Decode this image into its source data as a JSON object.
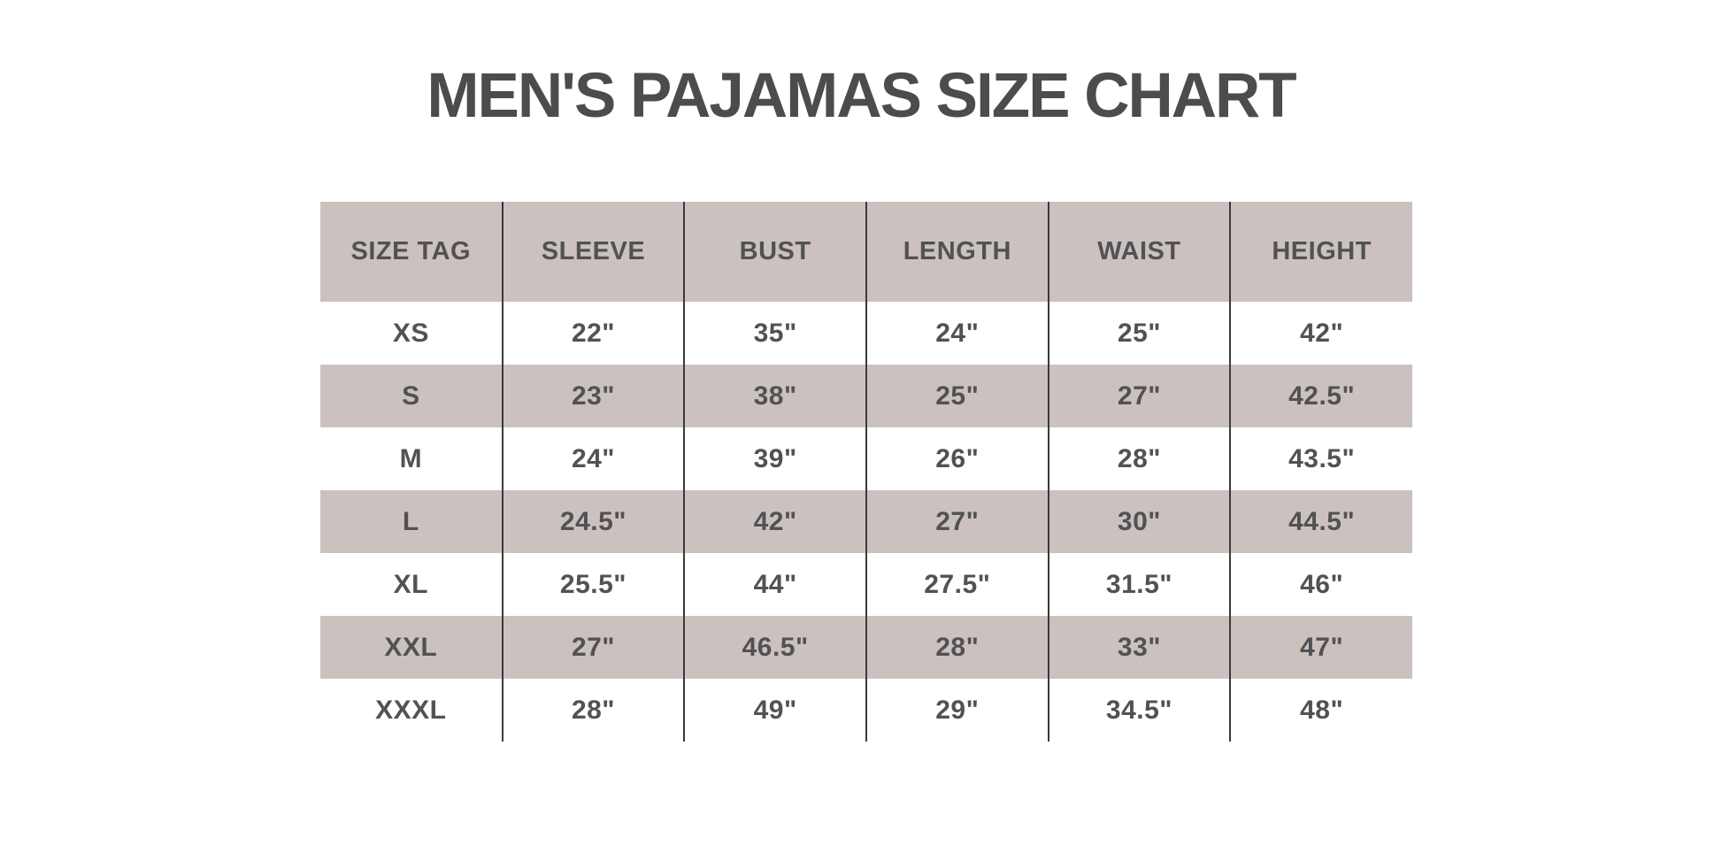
{
  "page": {
    "title": "MEN'S PAJAMAS SIZE CHART"
  },
  "colors": {
    "background": "#ffffff",
    "band": "#cbc2c0",
    "text": "#525153",
    "title_text": "#4c4b4d",
    "column_divider": "#3b3a3b"
  },
  "chart_data": {
    "type": "table",
    "title": "MEN'S PAJAMAS SIZE CHART",
    "columns": [
      "SIZE TAG",
      "SLEEVE",
      "BUST",
      "LENGTH",
      "WAIST",
      "HEIGHT"
    ],
    "rows": [
      [
        "XS",
        "22\"",
        "35\"",
        "24\"",
        "25\"",
        "42\""
      ],
      [
        "S",
        "23\"",
        "38\"",
        "25\"",
        "27\"",
        "42.5\""
      ],
      [
        "M",
        "24\"",
        "39\"",
        "26\"",
        "28\"",
        "43.5\""
      ],
      [
        "L",
        "24.5\"",
        "42\"",
        "27\"",
        "30\"",
        "44.5\""
      ],
      [
        "XL",
        "25.5\"",
        "44\"",
        "27.5\"",
        "31.5\"",
        "46\""
      ],
      [
        "XXL",
        "27\"",
        "46.5\"",
        "28\"",
        "33\"",
        "47\""
      ],
      [
        "XXXL",
        "28\"",
        "49\"",
        "29\"",
        "34.5\"",
        "48\""
      ]
    ],
    "layout": {
      "striped_rows": true,
      "header_band": true,
      "vertical_dividers_only": true,
      "legend": "none",
      "grid": "columns-only"
    }
  }
}
